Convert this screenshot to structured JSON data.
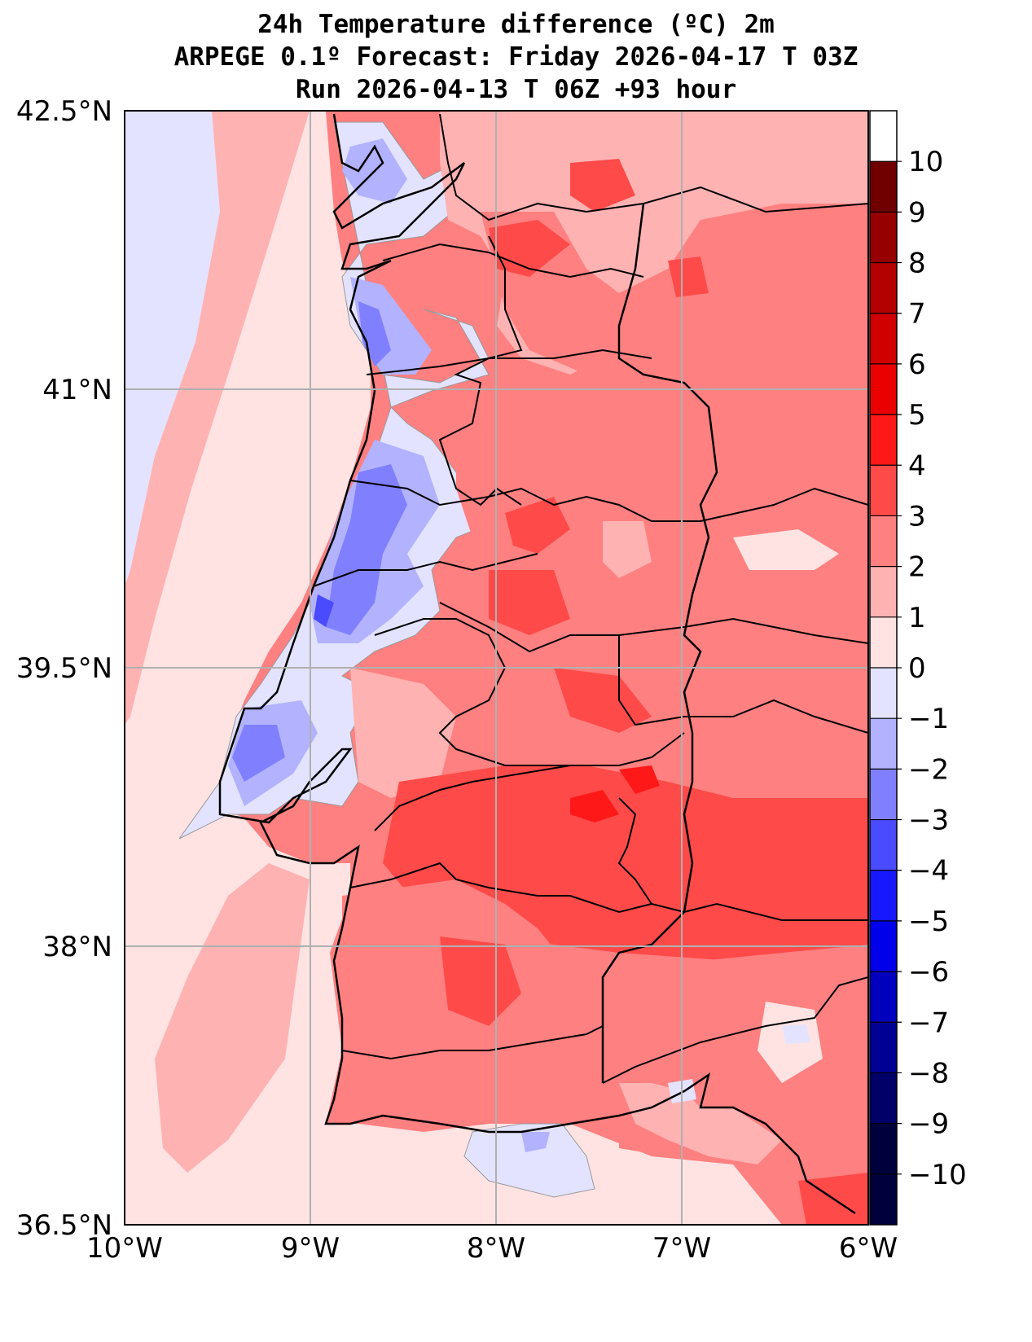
{
  "title": {
    "line1": "24h Temperature difference (ºC) 2m",
    "line2": "ARPEGE 0.1º Forecast: Friday 2026-04-17 T 03Z",
    "line3": "Run 2026-04-13 T 06Z +93 hour"
  },
  "axes": {
    "lon_labels": [
      "10°W",
      "9°W",
      "8°W",
      "7°W",
      "6°W"
    ],
    "lat_labels": [
      "42.5°N",
      "41°N",
      "39.5°N",
      "38°N",
      "36.5°N"
    ],
    "lon_values": [
      -10,
      -9,
      -8,
      -7,
      -6
    ],
    "lat_values": [
      42.5,
      41,
      39.5,
      38,
      36.5
    ]
  },
  "colorbar": {
    "min": -11,
    "max": 11,
    "tick_labels": [
      "−10",
      "−9",
      "−8",
      "−7",
      "−6",
      "−5",
      "−4",
      "−3",
      "−2",
      "−1",
      "0",
      "1",
      "2",
      "3",
      "4",
      "5",
      "6",
      "7",
      "8",
      "9",
      "10"
    ],
    "tick_values": [
      -10,
      -9,
      -8,
      -7,
      -6,
      -5,
      -4,
      -3,
      -2,
      -1,
      0,
      1,
      2,
      3,
      4,
      5,
      6,
      7,
      8,
      9,
      10
    ],
    "colors": [
      "#00003d",
      "#000068",
      "#000094",
      "#0000bf",
      "#0000ea",
      "#1818ff",
      "#4a4aff",
      "#8080ff",
      "#b2b2ff",
      "#e3e3ff",
      "#ffe3e3",
      "#ffb2b2",
      "#ff8080",
      "#ff4a4a",
      "#ff1818",
      "#ea0000",
      "#d00000",
      "#b30000",
      "#960000",
      "#700000"
    ]
  },
  "map_fill": {
    "sea_base": "#ffe3e3",
    "land_base": "#ff8080"
  }
}
